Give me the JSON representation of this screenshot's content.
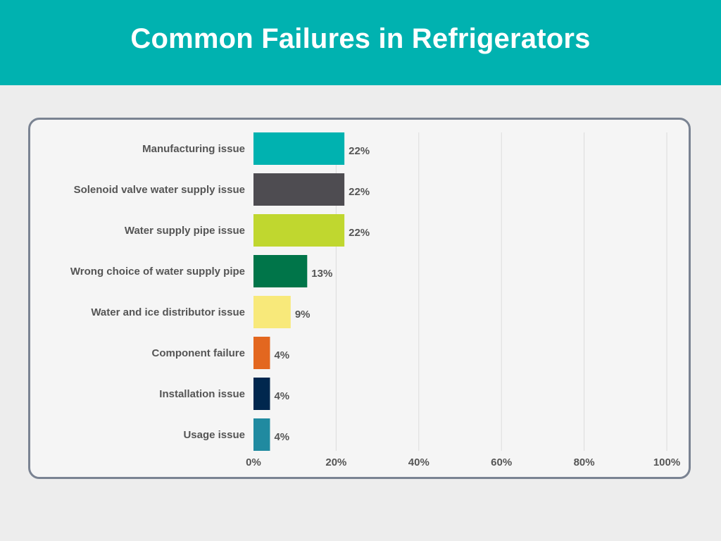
{
  "chart_data": {
    "type": "bar",
    "orientation": "horizontal",
    "title": "Common Failures in Refrigerators",
    "categories": [
      "Manufacturing issue",
      "Solenoid valve water supply issue",
      "Water supply pipe issue",
      "Wrong choice of water supply pipe",
      "Water and ice distributor issue",
      "Component failure",
      "Installation issue",
      "Usage issue"
    ],
    "values": [
      22,
      22,
      22,
      13,
      9,
      4,
      4,
      4
    ],
    "value_labels": [
      "22%",
      "22%",
      "22%",
      "13%",
      "9%",
      "4%",
      "4%",
      "4%"
    ],
    "colors": [
      "#00b2b0",
      "#4e4c51",
      "#c0d72f",
      "#007549",
      "#f8e97a",
      "#e3671f",
      "#00274e",
      "#208aa0"
    ],
    "xlim": [
      0,
      100
    ],
    "xticks": [
      0,
      20,
      40,
      60,
      80,
      100
    ],
    "xtick_labels": [
      "0%",
      "20%",
      "40%",
      "60%",
      "80%",
      "100%"
    ],
    "grid": true,
    "legend": "none"
  },
  "colors": {
    "header_background": "#00b2b0",
    "page_background": "#ededed",
    "panel_background": "#f5f5f5",
    "panel_border": "#7a8392",
    "text": "#555555"
  }
}
